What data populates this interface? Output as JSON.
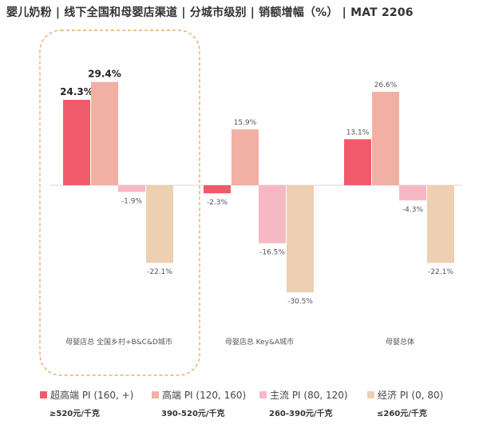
{
  "chart_data": {
    "type": "bar",
    "title": "婴儿奶粉 | 线下全国和母婴店渠道 | 分城市级别 | 销额增幅（%） | MAT 2206",
    "categories": [
      "母婴店总 全国乡村+B&C&D城市",
      "母婴店总 Key&A城市",
      "母婴总体"
    ],
    "series": [
      {
        "name": "超高端 PI (160, +)",
        "price": "≥520元/千克",
        "color": "#f15a6a",
        "values": [
          24.3,
          -2.3,
          13.1
        ]
      },
      {
        "name": "高端 PI (120, 160)",
        "price": "390-520元/千克",
        "color": "#f2b0a4",
        "values": [
          29.4,
          15.9,
          26.6
        ]
      },
      {
        "name": "主流 PI (80, 120)",
        "price": "260-390元/千克",
        "color": "#f6b8c4",
        "values": [
          -1.9,
          -16.5,
          -4.3
        ]
      },
      {
        "name": "经济 PI (0, 80)",
        "price": "≤260元/千克",
        "color": "#edcfb1",
        "values": [
          -22.1,
          -30.5,
          -22.1
        ]
      }
    ],
    "ylim": [
      -36,
      34
    ],
    "value_suffix": "%",
    "highlight_group": 0,
    "xlabel": "",
    "ylabel": ""
  }
}
